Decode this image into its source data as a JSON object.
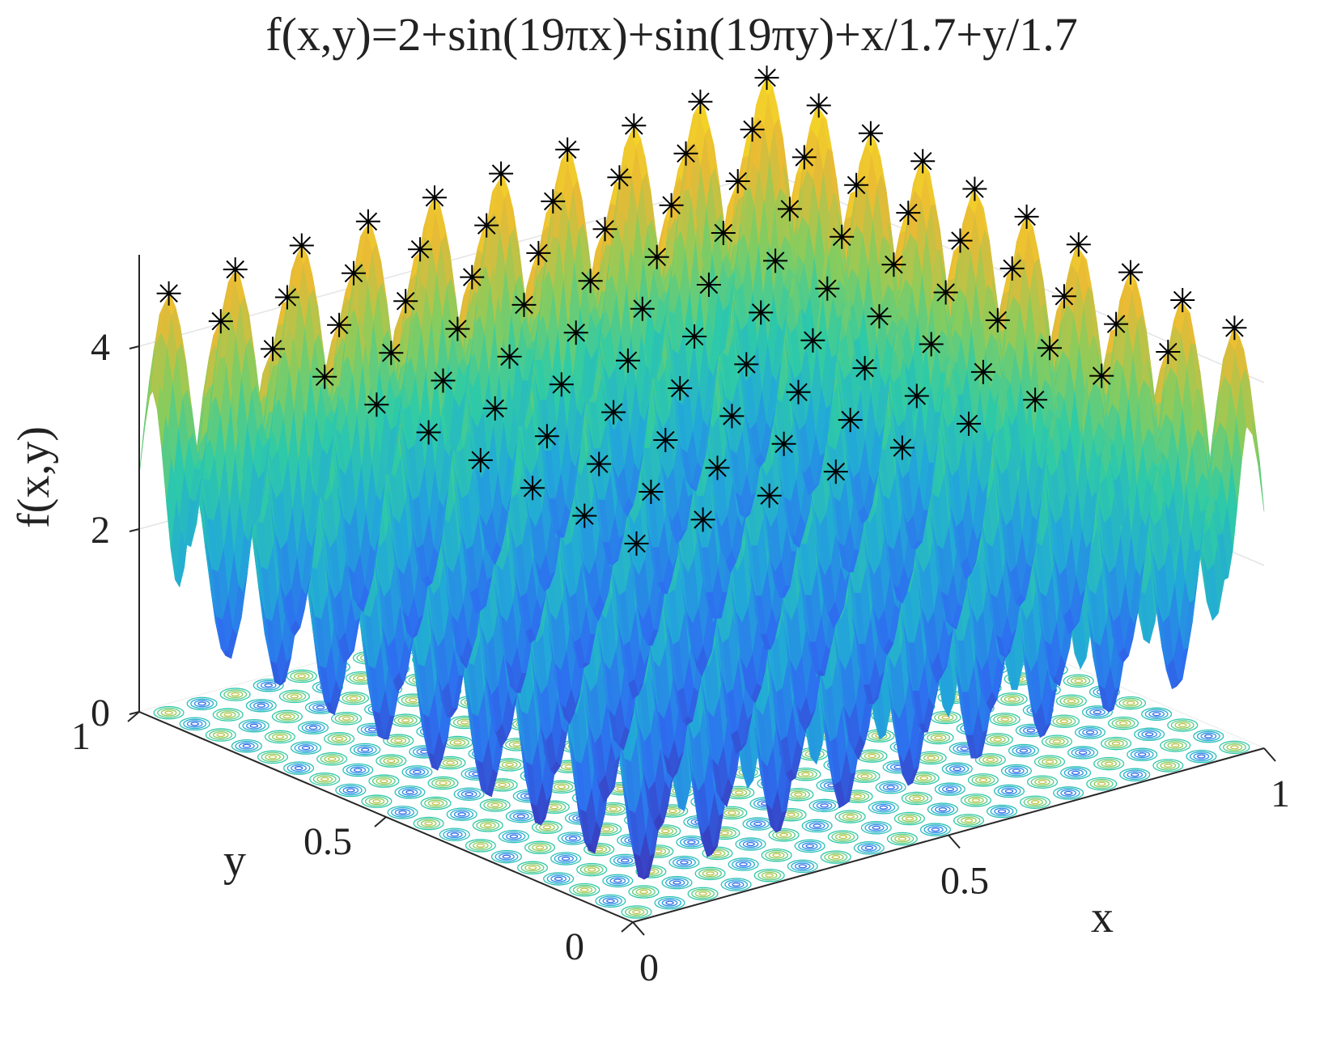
{
  "chart_data": {
    "type": "surface",
    "title": "f(x,y)=2+sin(19πx)+sin(19πy)+x/1.7+y/1.7",
    "xlabel": "x",
    "ylabel": "y",
    "zlabel": "f(x,y)",
    "xlim": [
      0,
      1
    ],
    "ylim": [
      0,
      1
    ],
    "zlim": [
      0,
      5
    ],
    "xticks": [
      "0",
      "0.5",
      "1"
    ],
    "yticks": [
      "0",
      "0.5",
      "1"
    ],
    "zticks": [
      "0",
      "2",
      "4"
    ],
    "function": {
      "constant": 2,
      "frequency": 19,
      "linear_divisor": 1.7
    },
    "contour_projection": "base plane",
    "marker": "*",
    "marker_name": "local maxima",
    "colormap": [
      "#3e26a8",
      "#2d6ff0",
      "#22a9d8",
      "#2fcba6",
      "#88cc5d",
      "#e9ba35",
      "#f9e021"
    ],
    "grid": true
  }
}
